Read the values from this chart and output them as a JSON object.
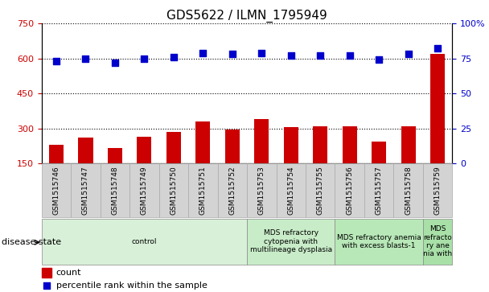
{
  "title": "GDS5622 / ILMN_1795949",
  "samples": [
    "GSM1515746",
    "GSM1515747",
    "GSM1515748",
    "GSM1515749",
    "GSM1515750",
    "GSM1515751",
    "GSM1515752",
    "GSM1515753",
    "GSM1515754",
    "GSM1515755",
    "GSM1515756",
    "GSM1515757",
    "GSM1515758",
    "GSM1515759"
  ],
  "counts": [
    230,
    260,
    215,
    265,
    285,
    330,
    295,
    340,
    305,
    310,
    310,
    245,
    310,
    620
  ],
  "percentiles": [
    73,
    75,
    72,
    75,
    76,
    79,
    78,
    79,
    77,
    77,
    77,
    74,
    78,
    82
  ],
  "ylim_left": [
    150,
    750
  ],
  "ylim_right": [
    0,
    100
  ],
  "yticks_left": [
    150,
    300,
    450,
    600,
    750
  ],
  "yticks_right": [
    0,
    25,
    50,
    75,
    100
  ],
  "disease_groups": [
    {
      "label": "control",
      "start": 0,
      "end": 7,
      "color": "#d8f0d8"
    },
    {
      "label": "MDS refractory\ncytopenia with\nmultilineage dysplasia",
      "start": 7,
      "end": 10,
      "color": "#c8ecc8"
    },
    {
      "label": "MDS refractory anemia\nwith excess blasts-1",
      "start": 10,
      "end": 13,
      "color": "#b8e8b8"
    },
    {
      "label": "MDS\nrefracto\nry ane\nnia with",
      "start": 13,
      "end": 14,
      "color": "#a8e0a8"
    }
  ],
  "bar_color": "#cc0000",
  "dot_color": "#0000cc",
  "bar_width": 0.5,
  "dot_size": 35,
  "tick_color_left": "#cc0000",
  "tick_color_right": "#0000cc",
  "legend_count_color": "#cc0000",
  "legend_pct_color": "#0000cc",
  "disease_label": "disease state",
  "sample_box_color": "#d3d3d3",
  "sample_box_edge": "#aaaaaa"
}
